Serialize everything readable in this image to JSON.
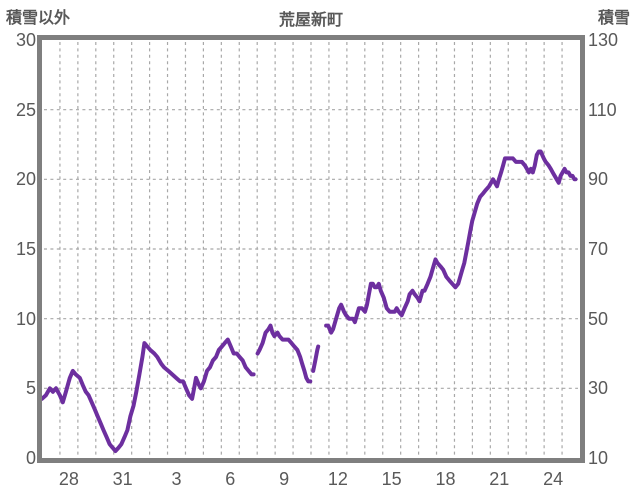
{
  "header": {
    "left_axis_title": "積雪以外",
    "title": "荒屋新町",
    "right_axis_title": "積雪"
  },
  "colors": {
    "line": "#6D2F9F",
    "border": "#7F7F7F",
    "grid": "#A8A8A8",
    "text": "#595959",
    "background": "#FFFFFF"
  },
  "chart_data": {
    "type": "line",
    "title": "荒屋新町",
    "station": "荒屋新町",
    "left_axis": {
      "label": "積雪以外",
      "min": 0,
      "max": 30,
      "ticks": [
        30,
        25,
        20,
        15,
        10,
        5,
        0
      ]
    },
    "right_axis": {
      "label": "積雪",
      "min": 10,
      "max": 130,
      "ticks": [
        130,
        110,
        90,
        70,
        50,
        30,
        10
      ]
    },
    "x_axis": {
      "span_days": 30,
      "gridline_every_days": 1,
      "tick_labels": [
        "28",
        "31",
        "3",
        "6",
        "9",
        "12",
        "15",
        "18",
        "21",
        "24"
      ],
      "tick_days": [
        1.5,
        4.5,
        7.5,
        10.5,
        13.5,
        16.5,
        19.5,
        22.5,
        25.5,
        28.5
      ]
    },
    "legend": "none",
    "grid": "dashed",
    "series": [
      {
        "name": "積雪",
        "axis": "right",
        "unit": "cm",
        "points": [
          [
            0,
            27
          ],
          [
            0.22,
            28
          ],
          [
            0.44,
            30
          ],
          [
            0.61,
            29
          ],
          [
            0.78,
            30
          ],
          [
            1.0,
            28
          ],
          [
            1.16,
            26
          ],
          [
            1.33,
            29
          ],
          [
            1.55,
            33
          ],
          [
            1.72,
            35
          ],
          [
            1.88,
            34
          ],
          [
            2.11,
            33
          ],
          [
            2.27,
            31
          ],
          [
            2.44,
            29
          ],
          [
            2.6,
            28
          ],
          [
            2.77,
            26
          ],
          [
            2.94,
            24
          ],
          [
            3.1,
            22
          ],
          [
            3.27,
            20
          ],
          [
            3.43,
            18
          ],
          [
            3.6,
            16
          ],
          [
            3.77,
            14
          ],
          [
            3.93,
            13
          ],
          [
            4.1,
            12
          ],
          [
            4.27,
            13
          ],
          [
            4.43,
            14
          ],
          [
            4.6,
            16
          ],
          [
            4.76,
            18
          ],
          [
            4.93,
            22
          ],
          [
            5.1,
            25
          ],
          [
            5.26,
            29
          ],
          [
            5.43,
            34
          ],
          [
            5.6,
            39
          ],
          [
            5.71,
            43
          ],
          [
            5.87,
            42
          ],
          [
            6.04,
            41
          ],
          [
            6.26,
            40
          ],
          [
            6.43,
            39
          ],
          [
            6.65,
            37
          ],
          [
            6.81,
            36
          ],
          [
            7.04,
            35
          ],
          [
            7.26,
            34
          ],
          [
            7.48,
            33
          ],
          [
            7.7,
            32
          ],
          [
            7.87,
            32
          ],
          [
            8.03,
            30
          ],
          [
            8.2,
            28
          ],
          [
            8.37,
            27
          ],
          [
            8.48,
            30
          ],
          [
            8.59,
            33
          ],
          [
            8.75,
            31
          ],
          [
            8.86,
            30
          ],
          [
            9.03,
            32
          ],
          [
            9.2,
            35
          ],
          [
            9.36,
            36
          ],
          [
            9.53,
            38
          ],
          [
            9.7,
            39
          ],
          [
            9.86,
            41
          ],
          [
            10.03,
            42
          ],
          [
            10.19,
            43
          ],
          [
            10.36,
            44
          ],
          [
            10.53,
            42
          ],
          [
            10.69,
            40
          ],
          [
            10.86,
            40
          ],
          [
            11.02,
            39
          ],
          [
            11.19,
            38
          ],
          [
            11.36,
            36
          ],
          [
            11.52,
            35
          ],
          [
            11.69,
            34
          ],
          [
            11.8,
            34
          ],
          null,
          [
            12.02,
            40
          ],
          [
            12.13,
            41
          ],
          [
            12.3,
            43
          ],
          [
            12.47,
            46
          ],
          [
            12.63,
            47
          ],
          [
            12.74,
            48
          ],
          [
            12.85,
            46
          ],
          [
            12.96,
            45
          ],
          [
            13.13,
            46
          ],
          [
            13.24,
            45
          ],
          [
            13.41,
            44
          ],
          [
            13.57,
            44
          ],
          [
            13.74,
            44
          ],
          [
            13.91,
            43
          ],
          [
            14.07,
            42
          ],
          [
            14.24,
            41
          ],
          [
            14.4,
            39
          ],
          [
            14.51,
            37
          ],
          [
            14.63,
            35
          ],
          [
            14.74,
            33
          ],
          [
            14.85,
            32
          ],
          [
            14.96,
            32
          ],
          null,
          [
            15.12,
            35
          ],
          [
            15.24,
            38
          ],
          [
            15.35,
            41
          ],
          [
            15.4,
            42
          ],
          null,
          [
            15.84,
            48
          ],
          [
            15.96,
            48
          ],
          [
            16.12,
            46
          ],
          [
            16.23,
            47
          ],
          [
            16.4,
            50
          ],
          [
            16.57,
            53
          ],
          [
            16.68,
            54
          ],
          [
            16.84,
            52
          ],
          [
            16.95,
            51
          ],
          [
            17.12,
            50
          ],
          [
            17.23,
            50
          ],
          [
            17.34,
            50
          ],
          [
            17.45,
            49
          ],
          [
            17.56,
            51
          ],
          [
            17.67,
            53
          ],
          [
            17.84,
            53
          ],
          [
            18.01,
            52
          ],
          [
            18.12,
            54
          ],
          [
            18.23,
            57
          ],
          [
            18.34,
            60
          ],
          [
            18.45,
            60
          ],
          [
            18.56,
            59
          ],
          [
            18.67,
            59
          ],
          [
            18.78,
            60
          ],
          [
            18.89,
            58
          ],
          [
            19.06,
            56
          ],
          [
            19.22,
            53
          ],
          [
            19.39,
            52
          ],
          [
            19.5,
            52
          ],
          [
            19.67,
            52
          ],
          [
            19.78,
            53
          ],
          [
            19.89,
            52
          ],
          [
            20.06,
            51
          ],
          [
            20.22,
            53
          ],
          [
            20.39,
            55
          ],
          [
            20.5,
            57
          ],
          [
            20.66,
            58
          ],
          [
            20.78,
            57
          ],
          [
            20.94,
            56
          ],
          [
            21.05,
            55
          ],
          [
            21.22,
            58
          ],
          [
            21.33,
            58
          ],
          [
            21.5,
            60
          ],
          [
            21.66,
            62
          ],
          [
            21.77,
            64
          ],
          [
            21.94,
            67
          ],
          [
            22.05,
            66
          ],
          [
            22.22,
            65
          ],
          [
            22.38,
            64
          ],
          [
            22.55,
            62
          ],
          [
            22.71,
            61
          ],
          [
            22.88,
            60
          ],
          [
            23.05,
            59
          ],
          [
            23.21,
            60
          ],
          [
            23.32,
            62
          ],
          [
            23.43,
            64
          ],
          [
            23.55,
            66
          ],
          [
            23.66,
            69
          ],
          [
            23.77,
            72
          ],
          [
            23.88,
            75
          ],
          [
            23.99,
            78
          ],
          [
            24.1,
            80
          ],
          [
            24.27,
            83
          ],
          [
            24.43,
            85
          ],
          [
            24.6,
            86
          ],
          [
            24.76,
            87
          ],
          [
            24.93,
            88
          ],
          [
            25.04,
            89
          ],
          [
            25.15,
            90
          ],
          [
            25.26,
            89
          ],
          [
            25.37,
            88
          ],
          [
            25.48,
            90
          ],
          [
            25.6,
            92
          ],
          [
            25.71,
            94
          ],
          [
            25.82,
            96
          ],
          [
            25.93,
            96
          ],
          [
            26.09,
            96
          ],
          [
            26.26,
            96
          ],
          [
            26.43,
            95
          ],
          [
            26.59,
            95
          ],
          [
            26.76,
            95
          ],
          [
            26.93,
            94
          ],
          [
            27.04,
            93
          ],
          [
            27.15,
            92
          ],
          [
            27.26,
            93
          ],
          [
            27.37,
            92
          ],
          [
            27.48,
            94
          ],
          [
            27.59,
            97
          ],
          [
            27.7,
            98
          ],
          [
            27.81,
            98
          ],
          [
            27.98,
            96
          ],
          [
            28.09,
            95
          ],
          [
            28.25,
            94
          ],
          [
            28.37,
            93
          ],
          [
            28.48,
            92
          ],
          [
            28.59,
            91
          ],
          [
            28.7,
            90
          ],
          [
            28.81,
            89
          ],
          [
            28.92,
            91
          ],
          [
            29.03,
            92
          ],
          [
            29.14,
            93
          ],
          [
            29.25,
            92
          ],
          [
            29.36,
            92
          ],
          [
            29.47,
            91
          ],
          [
            29.58,
            91
          ],
          [
            29.69,
            90
          ],
          [
            29.75,
            90
          ]
        ]
      }
    ]
  }
}
